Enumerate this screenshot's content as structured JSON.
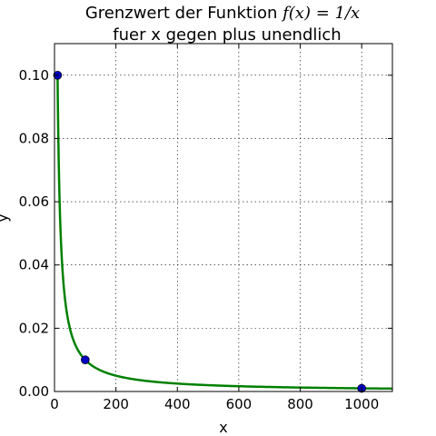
{
  "chart_data": {
    "type": "line",
    "title_line1_text": "Grenzwert der Funktion ",
    "title_line1_math": "f(x) = 1/x",
    "title_line2": "fuer x gegen plus unendlich",
    "xlabel": "x",
    "ylabel": "y",
    "xlim": [
      0,
      1100
    ],
    "ylim": [
      0,
      0.11
    ],
    "x_ticks": [
      0,
      200,
      400,
      600,
      800,
      1000
    ],
    "x_tick_labels": [
      "0",
      "200",
      "400",
      "600",
      "800",
      "1000"
    ],
    "y_ticks": [
      0,
      0.02,
      0.04,
      0.06,
      0.08,
      0.1
    ],
    "y_tick_labels": [
      "0.00",
      "0.02",
      "0.04",
      "0.06",
      "0.08",
      "0.10"
    ],
    "grid": true,
    "series": [
      {
        "function": "1/x",
        "x_range": [
          10,
          1100
        ],
        "color": "#008000"
      }
    ],
    "points": [
      {
        "x": 10,
        "y": 0.1
      },
      {
        "x": 100,
        "y": 0.01
      },
      {
        "x": 1000,
        "y": 0.001
      }
    ],
    "point_color": "#0000bf"
  }
}
